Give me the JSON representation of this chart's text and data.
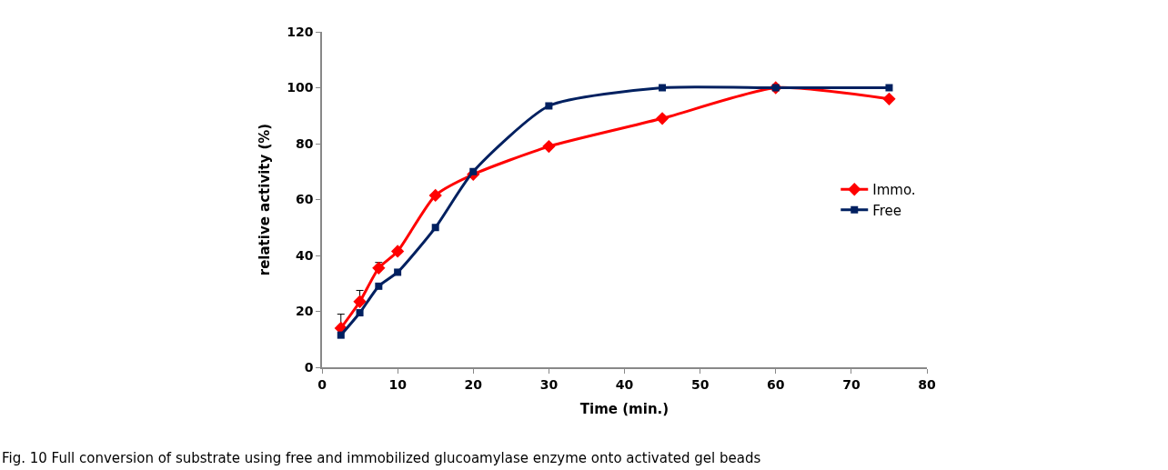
{
  "chart_data": {
    "type": "line",
    "xlabel": "Time (min.)",
    "ylabel": "relative activity (%)",
    "x": [
      2.5,
      5,
      7.5,
      10,
      15,
      20,
      30,
      45,
      60,
      75
    ],
    "series": [
      {
        "name": "Immo.",
        "color": "#ff0000",
        "marker": "diamond",
        "values": [
          14,
          23.5,
          35.5,
          41.5,
          61.5,
          69,
          79,
          89,
          100,
          96
        ],
        "errors": [
          5,
          4,
          2,
          null,
          null,
          null,
          null,
          null,
          null,
          null
        ]
      },
      {
        "name": "Free",
        "color": "#002060",
        "marker": "square",
        "values": [
          11.5,
          19.5,
          29,
          34,
          50,
          70,
          93.5,
          100,
          100,
          100
        ]
      }
    ],
    "xlim": [
      0,
      80
    ],
    "xticks": [
      0,
      10,
      20,
      30,
      40,
      50,
      60,
      70,
      80
    ],
    "ylim": [
      0,
      120
    ],
    "yticks": [
      0,
      20,
      40,
      60,
      80,
      100,
      120
    ],
    "legend": "right",
    "line_style": "solid",
    "annotations": [
      "Fig. 10 Full conversion of substrate using free and immobilized glucoamylase enzyme onto activated gel beads"
    ]
  }
}
